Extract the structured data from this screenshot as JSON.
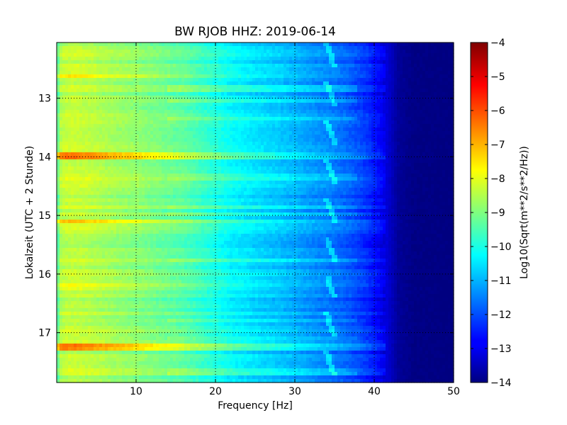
{
  "chart_data": {
    "type": "heatmap",
    "title": "BW RJOB HHZ: 2019-06-14",
    "xlabel": "Frequency [Hz]",
    "ylabel": "Lokalzeit (UTC + 2 Stunde)",
    "xlim": [
      0,
      50
    ],
    "ylim": [
      12.05,
      17.85
    ],
    "y_inverted": true,
    "x_ticks": [
      10,
      20,
      30,
      40,
      50
    ],
    "x_tick_labels": [
      "10",
      "20",
      "30",
      "40",
      "50"
    ],
    "y_ticks": [
      13,
      14,
      15,
      16,
      17
    ],
    "y_tick_labels": [
      "13",
      "14",
      "15",
      "16",
      "17"
    ],
    "grid": true,
    "colormap": "jet",
    "colorbar": {
      "label": "Log10(Sqrt(m**2/s**2/Hz))",
      "range": [
        -14,
        -4
      ],
      "ticks": [
        -4,
        -5,
        -6,
        -7,
        -8,
        -9,
        -10,
        -11,
        -12,
        -13,
        -14
      ],
      "tick_labels": [
        "−4",
        "−5",
        "−6",
        "−7",
        "−8",
        "−9",
        "−10",
        "−11",
        "−12",
        "−13",
        "−14"
      ]
    },
    "spectrum_profile": {
      "frequency_hz": [
        0,
        0.5,
        1,
        2,
        4,
        7,
        10,
        13,
        16,
        18,
        20,
        22,
        25,
        28,
        30,
        32,
        34,
        36,
        38,
        39,
        40,
        41,
        42,
        43,
        45,
        50
      ],
      "log10_amplitude": [
        -9.6,
        -8.6,
        -8.4,
        -8.35,
        -8.45,
        -8.7,
        -8.9,
        -9.15,
        -9.4,
        -9.7,
        -10.0,
        -10.3,
        -10.6,
        -10.85,
        -11.05,
        -11.3,
        -11.5,
        -11.75,
        -12.1,
        -12.3,
        -12.6,
        -12.9,
        -13.3,
        -13.75,
        -13.95,
        -14.0
      ]
    },
    "bright_bands": [
      {
        "hour": 12.62,
        "strength": 0.8
      },
      {
        "hour": 14.0,
        "strength": 1.8
      },
      {
        "hour": 15.1,
        "strength": 1.0
      },
      {
        "hour": 16.22,
        "strength": 0.5
      },
      {
        "hour": 17.25,
        "strength": 1.6
      }
    ],
    "tonal_line": {
      "frequency_hz": 34.5,
      "strength": 1.0
    }
  }
}
